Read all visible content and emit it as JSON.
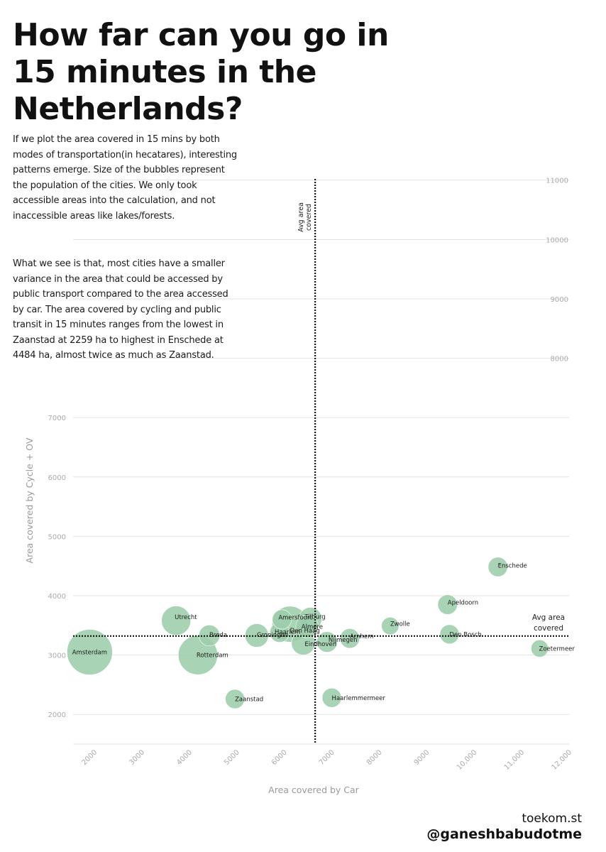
{
  "title": "How far can you go in 15 minutes in the Netherlands?",
  "paragraphs": [
    "If we plot the area covered in 15 mins by both modes of transportation(in hecatares), interesting patterns emerge. Size of the bubbles represent the population of the cities. We only took accessible areas into the calculation, and not inaccessible areas like lakes/forests.",
    "What we see is that, most cities have a smaller variance in the area that could be accessed by public transport compared to the area accessed by car. The area covered by cycling and public transit in 15 minutes ranges from the lowest in Zaanstad at 2259 ha to highest in Enschede at 4484 ha, almost twice as much as Zaanstad."
  ],
  "credits": {
    "site": "toekom.st",
    "handle": "@ganeshbabudotme"
  },
  "colors": {
    "bubble": "#9ccdaa",
    "grid": "#e3e3e3",
    "reference_line": "#111111",
    "axis_text": "#aaaaaa",
    "label_text": "#1a1a1a"
  },
  "chart_data": {
    "type": "scatter",
    "subtype": "bubble",
    "title": "",
    "xlabel": "Area covered by Car",
    "ylabel": "Area covered by Cycle + OV",
    "xlim": [
      1550,
      12000
    ],
    "ylim": [
      1500,
      11200
    ],
    "x_ticks": [
      2000,
      3000,
      4000,
      5000,
      6000,
      7000,
      8000,
      9000,
      10000,
      11000,
      12000
    ],
    "x_tick_labels": [
      "2000",
      "3000",
      "4000",
      "5000",
      "6000",
      "7000",
      "8000",
      "9000",
      "10,000",
      "11,000",
      "12,000"
    ],
    "y_ticks_left": [
      2000,
      3000,
      4000,
      5000,
      6000,
      7000
    ],
    "y_ticks_right": [
      8000,
      9000,
      10000,
      11000
    ],
    "grid": true,
    "bubble_size": "population",
    "reference_lines": [
      {
        "orientation": "vertical",
        "value": 6650,
        "label": "Avg area covered"
      },
      {
        "orientation": "horizontal",
        "value": 3320,
        "label": "Avg area covered"
      }
    ],
    "points": [
      {
        "name": "Amsterdam",
        "x": 1900,
        "y": 3050,
        "population": 870000
      },
      {
        "name": "Rotterdam",
        "x": 4180,
        "y": 3000,
        "population": 650000
      },
      {
        "name": "Utrecht",
        "x": 3720,
        "y": 3580,
        "population": 360000
      },
      {
        "name": "Den Haag",
        "x": 6120,
        "y": 3520,
        "population": 545000
      },
      {
        "name": "Eindhoven",
        "x": 6400,
        "y": 3200,
        "population": 235000
      },
      {
        "name": "Groningen",
        "x": 5420,
        "y": 3330,
        "population": 233000
      },
      {
        "name": "Tilburg",
        "x": 6550,
        "y": 3610,
        "population": 220000
      },
      {
        "name": "Almere",
        "x": 6480,
        "y": 3480,
        "population": 215000
      },
      {
        "name": "Breda",
        "x": 4420,
        "y": 3330,
        "population": 184000
      },
      {
        "name": "Nijmegen",
        "x": 6900,
        "y": 3220,
        "population": 177000
      },
      {
        "name": "Apeldoorn",
        "x": 9440,
        "y": 3850,
        "population": 163000
      },
      {
        "name": "Haarlem",
        "x": 5900,
        "y": 3380,
        "population": 162000
      },
      {
        "name": "Enschede",
        "x": 10500,
        "y": 4484,
        "population": 159000
      },
      {
        "name": "Arnhem",
        "x": 7380,
        "y": 3280,
        "population": 162000
      },
      {
        "name": "Amersfoort",
        "x": 5950,
        "y": 3600,
        "population": 157000
      },
      {
        "name": "Zaanstad",
        "x": 4960,
        "y": 2259,
        "population": 156000
      },
      {
        "name": "Haarlemmermeer",
        "x": 7000,
        "y": 2280,
        "population": 156000
      },
      {
        "name": "Den Bosch",
        "x": 9480,
        "y": 3350,
        "population": 155000
      },
      {
        "name": "Zwolle",
        "x": 8230,
        "y": 3490,
        "population": 128000
      },
      {
        "name": "Zoetermeer",
        "x": 11380,
        "y": 3110,
        "population": 125000
      }
    ]
  }
}
